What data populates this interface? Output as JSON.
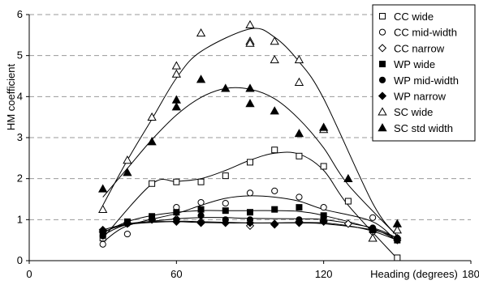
{
  "chart_data": {
    "type": "scatter",
    "xlabel": "Heading (degrees)",
    "ylabel": "HM coefficient",
    "xlim": [
      0,
      180
    ],
    "ylim": [
      0,
      6
    ],
    "x_ticks": [
      0,
      60,
      120,
      180
    ],
    "y_ticks": [
      0,
      1,
      2,
      3,
      4,
      5,
      6
    ],
    "grid": "horizontal dashed",
    "legend_position": "top-right",
    "series": [
      {
        "name": "CC wide",
        "marker": "square-open",
        "x": [
          30,
          50,
          60,
          70,
          80,
          90,
          100,
          110,
          120,
          130,
          150
        ],
        "y": [
          0.55,
          1.88,
          1.92,
          1.92,
          2.07,
          2.4,
          2.7,
          2.55,
          2.3,
          1.45,
          0.07
        ],
        "fit": [
          0.55,
          1.87,
          1.93,
          2.0,
          2.2,
          2.45,
          2.62,
          2.6,
          2.2,
          1.35,
          0.05
        ]
      },
      {
        "name": "CC mid-width",
        "marker": "circle-open",
        "x": [
          30,
          40,
          60,
          70,
          80,
          90,
          100,
          110,
          120,
          140,
          150
        ],
        "y": [
          0.4,
          0.65,
          1.3,
          1.42,
          1.4,
          1.65,
          1.7,
          1.55,
          1.3,
          1.05,
          0.55
        ],
        "fit": [
          0.45,
          0.85,
          1.15,
          1.35,
          1.52,
          1.58,
          1.55,
          1.45,
          1.25,
          0.95,
          0.45
        ]
      },
      {
        "name": "CC narrow",
        "marker": "diamond-open",
        "x": [
          30,
          40,
          60,
          70,
          90,
          100,
          110,
          120,
          130,
          140,
          150
        ],
        "y": [
          0.7,
          0.9,
          1.02,
          0.95,
          0.85,
          0.88,
          0.95,
          0.98,
          0.9,
          0.7,
          0.5
        ],
        "fit": [
          0.7,
          0.88,
          0.96,
          0.95,
          0.92,
          0.92,
          0.93,
          0.92,
          0.85,
          0.72,
          0.5
        ]
      },
      {
        "name": "WP wide",
        "marker": "square-filled",
        "x": [
          30,
          40,
          50,
          60,
          70,
          80,
          90,
          100,
          110,
          120,
          140,
          150
        ],
        "y": [
          0.7,
          0.95,
          1.08,
          1.18,
          1.25,
          1.22,
          1.18,
          1.25,
          1.3,
          1.1,
          0.75,
          0.5
        ],
        "fit": [
          0.68,
          0.95,
          1.1,
          1.18,
          1.22,
          1.22,
          1.22,
          1.22,
          1.2,
          1.1,
          0.78,
          0.5
        ]
      },
      {
        "name": "WP mid-width",
        "marker": "circle-filled",
        "x": [
          30,
          40,
          60,
          70,
          80,
          90,
          110,
          120,
          140,
          150
        ],
        "y": [
          0.6,
          0.9,
          1.0,
          1.1,
          1.0,
          1.0,
          1.0,
          1.05,
          0.8,
          0.55
        ],
        "fit": [
          0.62,
          0.88,
          1.02,
          1.05,
          1.05,
          1.03,
          1.02,
          1.0,
          0.8,
          0.55
        ]
      },
      {
        "name": "WP narrow",
        "marker": "diamond-filled",
        "x": [
          30,
          40,
          50,
          60,
          70,
          80,
          90,
          100,
          110,
          120,
          140,
          150
        ],
        "y": [
          0.75,
          0.92,
          1.0,
          0.95,
          0.92,
          0.92,
          0.92,
          0.9,
          0.92,
          0.95,
          0.75,
          0.55
        ],
        "fit": [
          0.75,
          0.9,
          0.95,
          0.95,
          0.93,
          0.92,
          0.92,
          0.92,
          0.92,
          0.9,
          0.75,
          0.55
        ]
      },
      {
        "name": "SC wide",
        "marker": "triangle-open",
        "x": [
          30,
          40,
          50,
          60,
          60,
          70,
          90,
          90,
          90,
          100,
          100,
          110,
          110,
          120,
          140,
          150
        ],
        "y": [
          1.25,
          2.45,
          3.5,
          4.55,
          4.75,
          5.55,
          5.75,
          5.35,
          5.3,
          5.35,
          4.9,
          4.9,
          4.35,
          3.2,
          0.55,
          0.75
        ],
        "fit": [
          1.35,
          2.45,
          3.45,
          4.45,
          4.45,
          5.1,
          5.65,
          5.65,
          5.65,
          5.45,
          5.45,
          4.85,
          4.85,
          3.95,
          1.4,
          0.6
        ]
      },
      {
        "name": "SC std width",
        "marker": "triangle-filled",
        "x": [
          30,
          40,
          50,
          60,
          60,
          70,
          80,
          90,
          90,
          100,
          110,
          120,
          130,
          150
        ],
        "y": [
          1.75,
          2.15,
          2.9,
          3.75,
          3.92,
          4.42,
          4.2,
          4.2,
          3.83,
          3.65,
          3.1,
          3.25,
          2.0,
          0.9
        ],
        "fit": [
          1.55,
          2.25,
          2.95,
          3.55,
          3.55,
          3.98,
          4.2,
          4.18,
          4.18,
          3.95,
          3.45,
          2.75,
          1.85,
          0.6
        ]
      }
    ]
  }
}
